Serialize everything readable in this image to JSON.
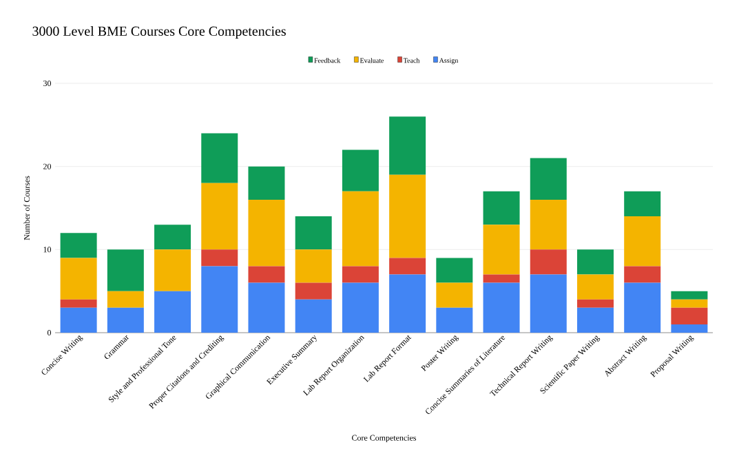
{
  "chart_data": {
    "type": "bar",
    "stacked": true,
    "title": "3000 Level BME Courses Core Competencies",
    "xlabel": "Core Competencies",
    "ylabel": "Number of Courses",
    "categories": [
      "Concise Writing",
      "Grammar",
      "Style and Professional Tone",
      "Proper Citations and Crediting",
      "Graphical Communication",
      "Executive Summary",
      "Lab Report Organization",
      "Lab Report Format",
      "Poster Writing",
      "Concise Summaries of Literature",
      "Technical Report Writing",
      "Scientific Paper Writing",
      "Abstract Writing",
      "Proposal Writing"
    ],
    "series": [
      {
        "name": "Assign",
        "color": "#4285f4",
        "values": [
          3,
          3,
          5,
          8,
          6,
          4,
          6,
          7,
          3,
          6,
          7,
          3,
          6,
          1
        ]
      },
      {
        "name": "Teach",
        "color": "#db4437",
        "values": [
          1,
          0,
          0,
          2,
          2,
          2,
          2,
          2,
          0,
          1,
          3,
          1,
          2,
          2
        ]
      },
      {
        "name": "Evaluate",
        "color": "#f4b400",
        "values": [
          5,
          2,
          5,
          8,
          8,
          4,
          9,
          10,
          3,
          6,
          6,
          3,
          6,
          1
        ]
      },
      {
        "name": "Feedback",
        "color": "#0f9d58",
        "values": [
          3,
          5,
          3,
          6,
          4,
          4,
          5,
          7,
          3,
          4,
          5,
          3,
          3,
          1
        ]
      }
    ],
    "ylim": [
      0,
      30
    ],
    "yticks": [
      0,
      10,
      20,
      30
    ],
    "grid": "y",
    "legend": "top"
  }
}
